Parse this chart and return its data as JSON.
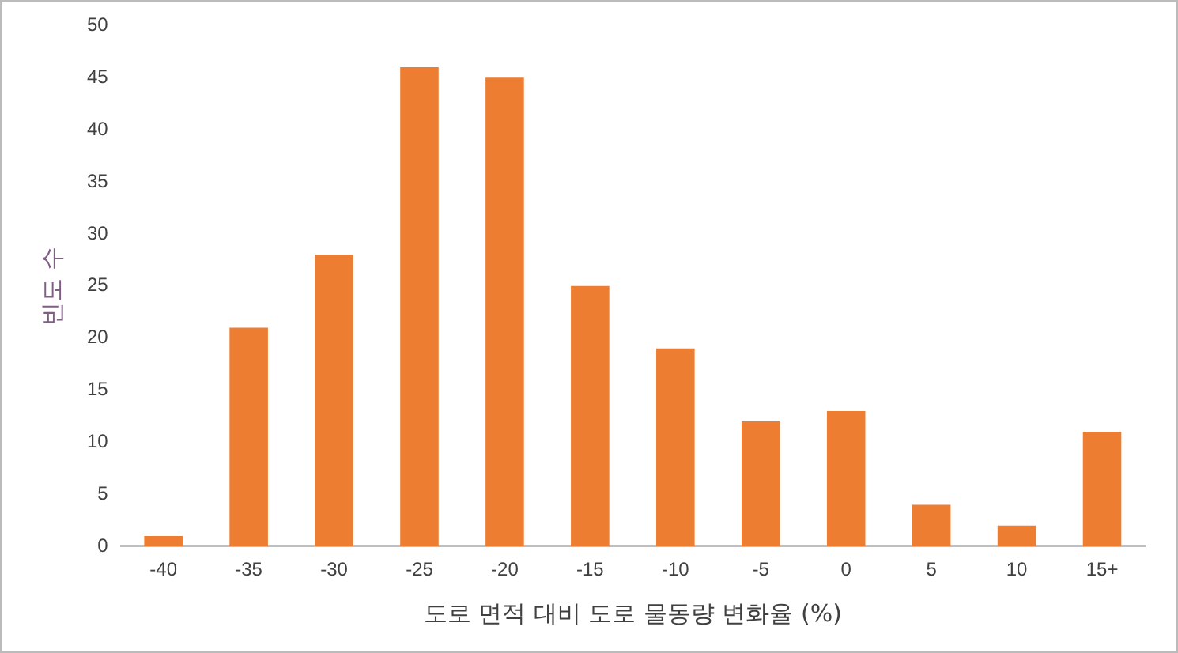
{
  "chart_data": {
    "type": "bar",
    "xlabel": "도로 면적 대비 도로 물동량 변화율 (%)",
    "ylabel": "빈도 수",
    "categories": [
      "-40",
      "-35",
      "-30",
      "-25",
      "-20",
      "-15",
      "-10",
      "-5",
      "0",
      "5",
      "10",
      "15+"
    ],
    "values": [
      1,
      21,
      28,
      46,
      45,
      25,
      19,
      12,
      13,
      4,
      2,
      11
    ],
    "color": "#ed7d31",
    "ylim": [
      0,
      50
    ],
    "yticks": [
      0,
      5,
      10,
      15,
      20,
      25,
      30,
      35,
      40,
      45,
      50
    ],
    "grid": false,
    "legend": false
  }
}
